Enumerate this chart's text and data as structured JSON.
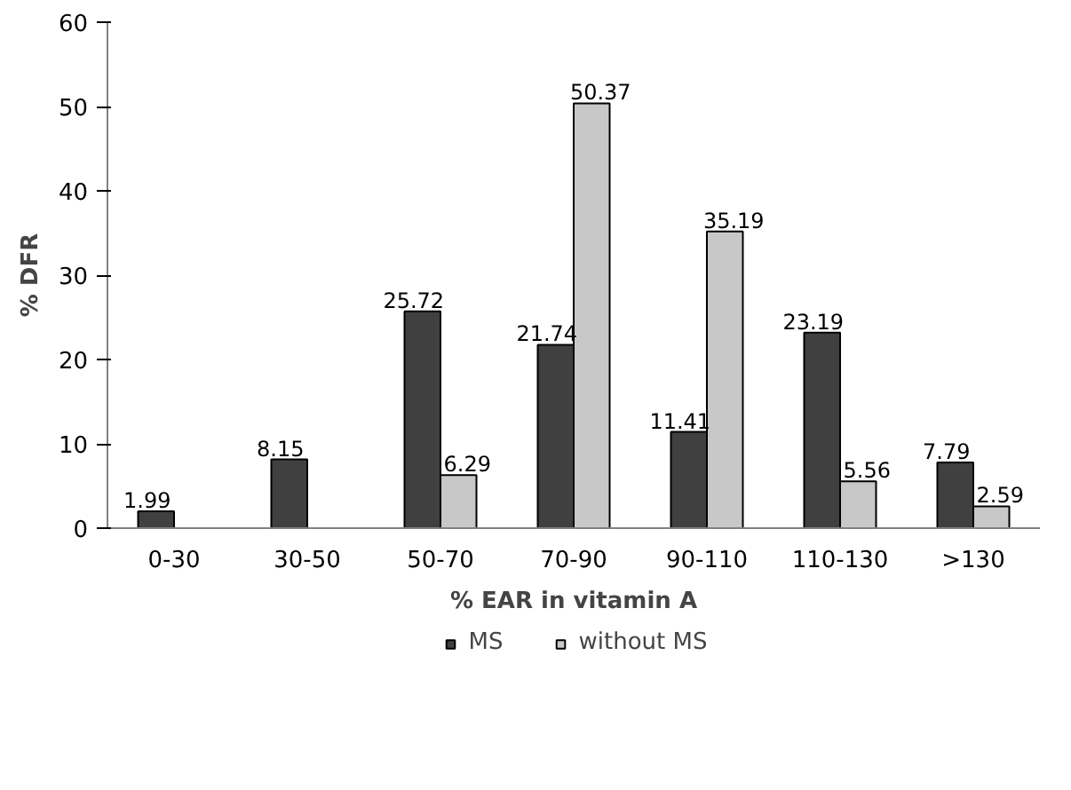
{
  "chart_data": {
    "type": "bar",
    "xlabel": "% EAR in vitamin A",
    "ylabel": "% DFR",
    "categories": [
      "0-30",
      "30-50",
      "50-70",
      "70-90",
      "90-110",
      "110-130",
      ">130"
    ],
    "series": [
      {
        "name": "MS",
        "color": "#404040",
        "values": [
          1.99,
          8.15,
          25.72,
          21.74,
          11.41,
          23.19,
          7.79
        ]
      },
      {
        "name": "without MS",
        "color": "#c8c8c8",
        "values": [
          null,
          null,
          6.29,
          50.37,
          35.19,
          5.56,
          2.59
        ]
      }
    ],
    "ylim": [
      0,
      60
    ],
    "yticks": [
      0,
      10,
      20,
      30,
      40,
      50,
      60
    ],
    "grid": false,
    "legend": "bottom",
    "data_labels": true
  }
}
